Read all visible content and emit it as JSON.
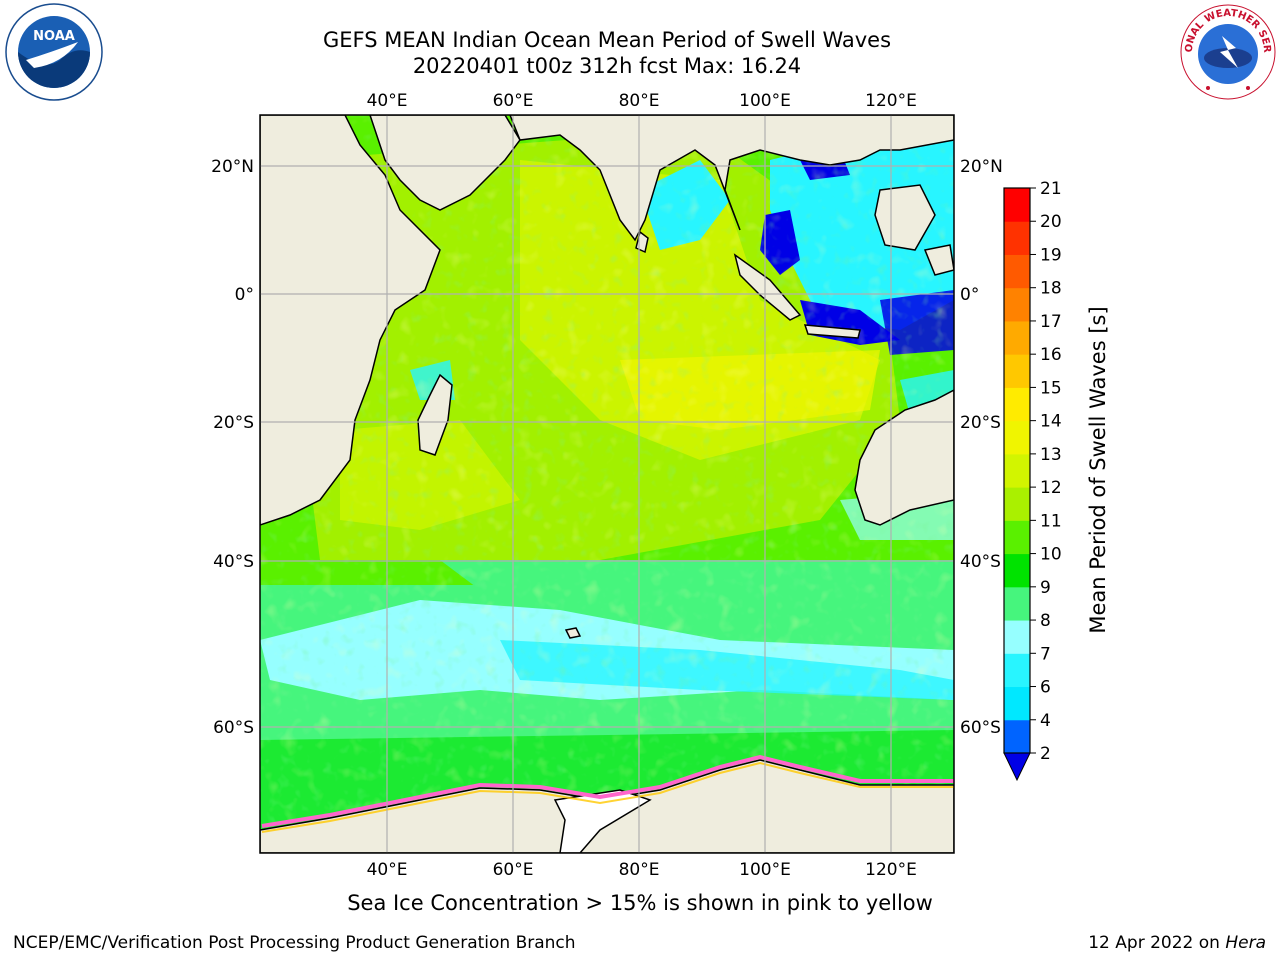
{
  "title": {
    "line1": "GEFS MEAN Indian Ocean Mean Period of Swell Waves",
    "line2": "20220401 t00z 312h fcst   Max: 16.24"
  },
  "map": {
    "lon_labels": [
      "40°E",
      "60°E",
      "80°E",
      "100°E",
      "120°E"
    ],
    "lat_labels": [
      "20°N",
      "0°",
      "20°S",
      "40°S",
      "60°S"
    ],
    "land_color": "#efedde",
    "ice_color": "#ff66cc"
  },
  "colorbar": {
    "title": "Mean Period of Swell Waves [s]",
    "ticks": [
      "2",
      "4",
      "6",
      "7",
      "8",
      "9",
      "10",
      "11",
      "12",
      "13",
      "14",
      "15",
      "16",
      "17",
      "18",
      "19",
      "20",
      "21"
    ],
    "colors": [
      "#0064ff",
      "#00e8ff",
      "#28f5ff",
      "#96ffff",
      "#46f57d",
      "#00e300",
      "#5af000",
      "#aaf000",
      "#d2f500",
      "#f0f500",
      "#ffeb00",
      "#ffc800",
      "#ffaa00",
      "#ff8200",
      "#ff5a00",
      "#ff3200",
      "#ff0000"
    ],
    "under_color": "#0000e6"
  },
  "notes": {
    "ice": "Sea Ice Concentration > 15% is shown in pink to yellow",
    "producer": "NCEP/EMC/Verification Post Processing Product Generation Branch",
    "date": "12 Apr 2022 on",
    "machine": "Hera"
  },
  "logos": {
    "noaa": "NOAA",
    "nws": "NATIONAL WEATHER SERVICE"
  }
}
